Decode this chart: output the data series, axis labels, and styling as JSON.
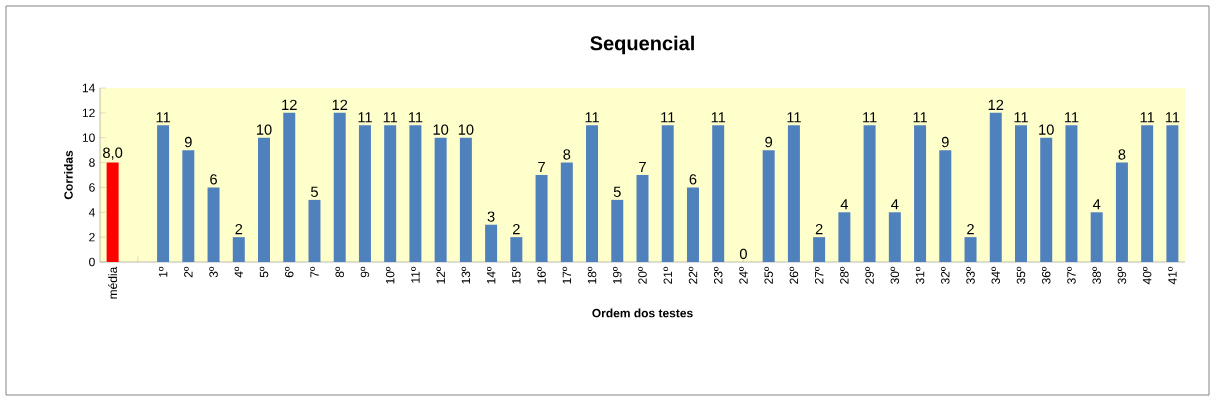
{
  "chart_data": {
    "type": "bar",
    "title": "Sequencial",
    "xlabel": "Ordem dos testes",
    "ylabel": "Corridas",
    "categories": [
      "média",
      null,
      "1º",
      "2º",
      "3º",
      "4º",
      "5º",
      "6º",
      "7º",
      "8º",
      "9º",
      "10º",
      "11º",
      "12º",
      "13º",
      "14º",
      "15º",
      "16º",
      "17º",
      "18º",
      "19º",
      "20º",
      "21º",
      "22º",
      "23º",
      "24º",
      "25º",
      "26º",
      "27º",
      "28º",
      "29º",
      "30º",
      "31º",
      "32º",
      "33º",
      "34º",
      "35º",
      "36º",
      "37º",
      "38º",
      "39º",
      "40º",
      "41º"
    ],
    "values": [
      8.0,
      null,
      11,
      9,
      6,
      2,
      10,
      12,
      5,
      12,
      11,
      11,
      11,
      10,
      10,
      3,
      2,
      7,
      8,
      11,
      5,
      7,
      11,
      6,
      11,
      0,
      9,
      11,
      2,
      4,
      11,
      4,
      11,
      9,
      2,
      12,
      11,
      10,
      11,
      4,
      8,
      11,
      11
    ],
    "value_labels": [
      "8,0",
      null,
      "11",
      "9",
      "6",
      "2",
      "10",
      "12",
      "5",
      "12",
      "11",
      "11",
      "11",
      "10",
      "10",
      "3",
      "2",
      "7",
      "8",
      "11",
      "5",
      "7",
      "11",
      "6",
      "11",
      "0",
      "9",
      "11",
      "2",
      "4",
      "11",
      "4",
      "11",
      "9",
      "2",
      "12",
      "11",
      "10",
      "11",
      "4",
      "8",
      "11",
      "11"
    ],
    "colors": [
      "#ff0000",
      "#4f81bd",
      "#4f81bd",
      "#4f81bd",
      "#4f81bd",
      "#4f81bd",
      "#4f81bd",
      "#4f81bd",
      "#4f81bd",
      "#4f81bd",
      "#4f81bd",
      "#4f81bd",
      "#4f81bd",
      "#4f81bd",
      "#4f81bd",
      "#4f81bd",
      "#4f81bd",
      "#4f81bd",
      "#4f81bd",
      "#4f81bd",
      "#4f81bd",
      "#4f81bd",
      "#4f81bd",
      "#4f81bd",
      "#4f81bd",
      "#4f81bd",
      "#4f81bd",
      "#4f81bd",
      "#4f81bd",
      "#4f81bd",
      "#4f81bd",
      "#4f81bd",
      "#4f81bd",
      "#4f81bd",
      "#4f81bd",
      "#4f81bd",
      "#4f81bd",
      "#4f81bd",
      "#4f81bd",
      "#4f81bd",
      "#4f81bd",
      "#4f81bd",
      "#4f81bd"
    ],
    "ylim": [
      0,
      14
    ],
    "yticks": [
      0,
      2,
      4,
      6,
      8,
      10,
      12,
      14
    ]
  }
}
